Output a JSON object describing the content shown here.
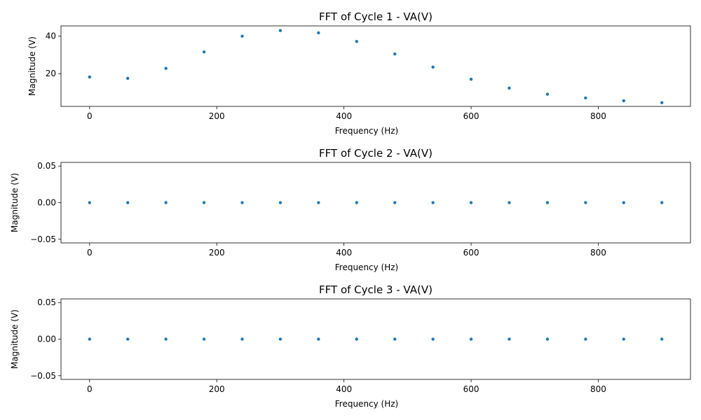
{
  "chart_data": [
    {
      "type": "scatter",
      "title": "FFT of Cycle 1 - VA(V)",
      "xlabel": "Frequency (Hz)",
      "ylabel": "Magnitude (V)",
      "xlim": [
        -45,
        945
      ],
      "ylim": [
        2.5,
        45.5
      ],
      "xticks": [
        0,
        200,
        400,
        600,
        800
      ],
      "xtick_labels": [
        "0",
        "200",
        "400",
        "600",
        "800"
      ],
      "yticks": [
        20,
        40
      ],
      "ytick_labels": [
        "20",
        "40"
      ],
      "color": "#1f77b4",
      "grid": false,
      "x": [
        0,
        60,
        120,
        180,
        240,
        300,
        360,
        420,
        480,
        540,
        600,
        660,
        720,
        780,
        840,
        900
      ],
      "y": [
        18.2,
        17.5,
        22.8,
        31.6,
        40.0,
        43.0,
        41.8,
        37.2,
        30.5,
        23.5,
        17.0,
        12.3,
        9.0,
        7.0,
        5.5,
        4.5
      ]
    },
    {
      "type": "scatter",
      "title": "FFT of Cycle 2 - VA(V)",
      "xlabel": "Frequency (Hz)",
      "ylabel": "Magnitude (V)",
      "xlim": [
        -45,
        945
      ],
      "ylim": [
        -0.055,
        0.055
      ],
      "xticks": [
        0,
        200,
        400,
        600,
        800
      ],
      "xtick_labels": [
        "0",
        "200",
        "400",
        "600",
        "800"
      ],
      "yticks": [
        -0.05,
        0,
        0.05
      ],
      "ytick_labels": [
        "−0.05",
        "0.00",
        "0.05"
      ],
      "color": "#1f77b4",
      "grid": false,
      "x": [
        0,
        60,
        120,
        180,
        240,
        300,
        360,
        420,
        480,
        540,
        600,
        660,
        720,
        780,
        840,
        900
      ],
      "y": [
        0,
        0,
        0,
        0,
        0,
        0,
        0,
        0,
        0,
        0,
        0,
        0,
        0,
        0,
        0,
        0
      ]
    },
    {
      "type": "scatter",
      "title": "FFT of Cycle 3 - VA(V)",
      "xlabel": "Frequency (Hz)",
      "ylabel": "Magnitude (V)",
      "xlim": [
        -45,
        945
      ],
      "ylim": [
        -0.055,
        0.055
      ],
      "xticks": [
        0,
        200,
        400,
        600,
        800
      ],
      "xtick_labels": [
        "0",
        "200",
        "400",
        "600",
        "800"
      ],
      "yticks": [
        -0.05,
        0,
        0.05
      ],
      "ytick_labels": [
        "−0.05",
        "0.00",
        "0.05"
      ],
      "color": "#1f77b4",
      "grid": false,
      "x": [
        0,
        60,
        120,
        180,
        240,
        300,
        360,
        420,
        480,
        540,
        600,
        660,
        720,
        780,
        840,
        900
      ],
      "y": [
        0,
        0,
        0,
        0,
        0,
        0,
        0,
        0,
        0,
        0,
        0,
        0,
        0,
        0,
        0,
        0
      ]
    }
  ]
}
